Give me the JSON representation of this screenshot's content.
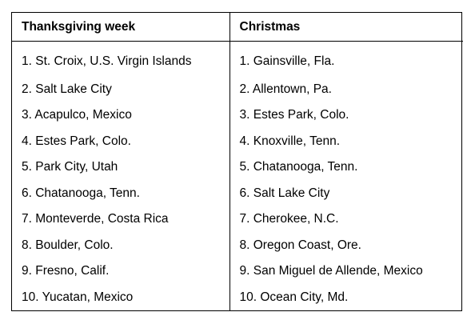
{
  "table": {
    "headers": [
      "Thanksgiving week",
      "Christmas"
    ],
    "rows": [
      [
        "1.  St. Croix, U.S. Virgin Islands",
        "1.  Gainsville, Fla."
      ],
      [
        "2.  Salt Lake City",
        "2.  Allentown, Pa."
      ],
      [
        "3.  Acapulco, Mexico",
        "3.  Estes Park, Colo."
      ],
      [
        "4.  Estes Park, Colo.",
        "4.  Knoxville, Tenn."
      ],
      [
        "5.  Park City, Utah",
        "5.  Chatanooga, Tenn."
      ],
      [
        "6.  Chatanooga, Tenn.",
        "6.  Salt Lake City"
      ],
      [
        "7.  Monteverde, Costa Rica",
        "7.  Cherokee, N.C."
      ],
      [
        "8.  Boulder, Colo.",
        "8.  Oregon Coast, Ore."
      ],
      [
        "9.  Fresno, Calif.",
        "9.  San Miguel de Allende, Mexico"
      ],
      [
        "10.  Yucatan, Mexico",
        "10.  Ocean City, Md."
      ]
    ]
  }
}
